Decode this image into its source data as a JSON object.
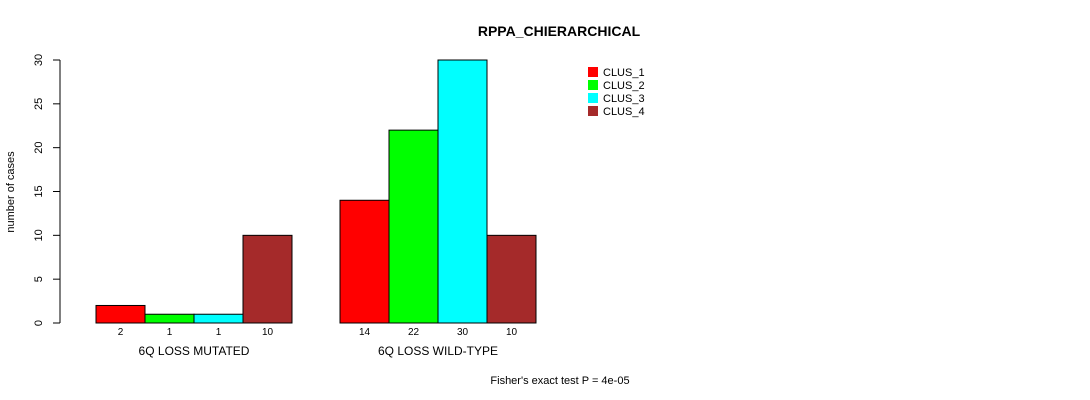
{
  "chart_data": {
    "type": "bar",
    "title": "RPPA_CHIERARCHICAL",
    "ylabel": "number of cases",
    "xlabel": "",
    "ylim": [
      0,
      30
    ],
    "yticks": [
      0,
      5,
      10,
      15,
      20,
      25,
      30
    ],
    "groups": [
      "6Q LOSS MUTATED",
      "6Q LOSS WILD-TYPE"
    ],
    "series": [
      {
        "name": "CLUS_1",
        "color": "#ff0000",
        "values": [
          2,
          14
        ]
      },
      {
        "name": "CLUS_2",
        "color": "#00ff00",
        "values": [
          1,
          22
        ]
      },
      {
        "name": "CLUS_3",
        "color": "#00ffff",
        "values": [
          1,
          30
        ]
      },
      {
        "name": "CLUS_4",
        "color": "#a52a2a",
        "values": [
          10,
          10
        ]
      }
    ],
    "bar_labels": [
      [
        "2",
        "1",
        "1",
        "10"
      ],
      [
        "14",
        "22",
        "30",
        "10"
      ]
    ],
    "legend_position": "top-right",
    "grid": false,
    "footnote": "Fisher's exact test P = 4e-05"
  }
}
